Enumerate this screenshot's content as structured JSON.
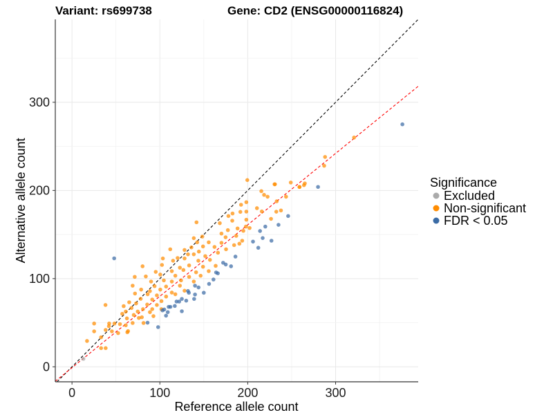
{
  "chart_data": {
    "type": "scatter",
    "title_left": "Variant: rs699738",
    "title_right": "Gene: CD2 (ENSG00000116824)",
    "xlabel": "Reference allele count",
    "ylabel": "Alternative allele count",
    "xlim": [
      -19,
      394
    ],
    "ylim": [
      -17,
      394
    ],
    "xticks": [
      0,
      100,
      200,
      300
    ],
    "yticks": [
      0,
      100,
      200,
      300
    ],
    "xtick_labels": [
      "0",
      "100",
      "200",
      "300"
    ],
    "ytick_labels": [
      "0",
      "100",
      "200",
      "300"
    ],
    "grid": true,
    "reference_lines": [
      {
        "name": "identity",
        "slope": 1,
        "intercept": 0,
        "color": "#000000",
        "style": "dashed"
      },
      {
        "name": "fit",
        "slope": 0.81,
        "intercept": -1,
        "color": "#FF0000",
        "style": "dashed"
      }
    ],
    "legend": {
      "title": "Significance",
      "placement": "right",
      "entries": [
        {
          "label": "Excluded",
          "color": "#AAAAAA"
        },
        {
          "label": "Non-significant",
          "color": "#FF8C00"
        },
        {
          "label": "FDR < 0.05",
          "color": "#3B6BA5"
        }
      ]
    },
    "series": [
      {
        "name": "Excluded",
        "color": "#AAAAAA",
        "points": [
          [
            13,
            9
          ]
        ]
      },
      {
        "name": "Non-significant",
        "color": "#FF8C00",
        "points": [
          [
            321,
            260
          ],
          [
            288,
            238
          ],
          [
            287,
            228
          ],
          [
            249,
            209
          ],
          [
            231,
            207
          ],
          [
            259,
            204
          ],
          [
            264,
            206
          ],
          [
            265,
            208
          ],
          [
            199.5,
            211.8
          ],
          [
            230.5,
            207
          ],
          [
            258.8,
            203.9
          ],
          [
            215.5,
            199.2
          ],
          [
            218.6,
            195
          ],
          [
            222.6,
            192.9
          ],
          [
            243.6,
            192.9
          ],
          [
            198.4,
            186.7
          ],
          [
            233,
            187.7
          ],
          [
            192.4,
            183.8
          ],
          [
            210.5,
            179.9
          ],
          [
            232.5,
            175.9
          ],
          [
            237.8,
            177.3
          ],
          [
            178,
            171
          ],
          [
            182.7,
            173.9
          ],
          [
            191.6,
            175.7
          ],
          [
            198.4,
            176
          ],
          [
            216,
            176.2
          ],
          [
            226.5,
            167.8
          ],
          [
            182.4,
            165.7
          ],
          [
            198.4,
            166.8
          ],
          [
            141.7,
            163.9
          ],
          [
            168.2,
            162.9
          ],
          [
            177.4,
            155
          ],
          [
            188.4,
            156.9
          ],
          [
            197.9,
            159
          ],
          [
            202.1,
            157.4
          ],
          [
            195,
            154.2
          ],
          [
            170.1,
            151.1
          ],
          [
            174.8,
            146.9
          ],
          [
            186.9,
            148.5
          ],
          [
            193.7,
            143
          ],
          [
            138.6,
            145.9
          ],
          [
            148.3,
            147.7
          ],
          [
            142.5,
            141.2
          ],
          [
            155.6,
            141.2
          ],
          [
            170.1,
            140.6
          ],
          [
            184.5,
            138
          ],
          [
            190.5,
            139.6
          ],
          [
            111.8,
            133.3
          ],
          [
            128.1,
            132.5
          ],
          [
            135.9,
            135.4
          ],
          [
            149.1,
            136.5
          ],
          [
            162.2,
            135.9
          ],
          [
            175.3,
            133.3
          ],
          [
            144.4,
            130.7
          ],
          [
            132,
            127.6
          ],
          [
            120.2,
            123.4
          ],
          [
            138.6,
            127.6
          ],
          [
            151.7,
            125.5
          ],
          [
            166.1,
            129.4
          ],
          [
            103.4,
            122.9
          ],
          [
            115,
            120.3
          ],
          [
            128.1,
            122.9
          ],
          [
            143.8,
            120.3
          ],
          [
            157,
            121.3
          ],
          [
            80.3,
            114
          ],
          [
            102.4,
            115.5
          ],
          [
            122.8,
            112.4
          ],
          [
            133.3,
            115
          ],
          [
            149.1,
            113.5
          ],
          [
            163.5,
            114.5
          ],
          [
            95.3,
            107.7
          ],
          [
            113.6,
            108.5
          ],
          [
            126.8,
            109.8
          ],
          [
            141.2,
            107.2
          ],
          [
            155.6,
            108.5
          ],
          [
            71.4,
            102
          ],
          [
            84,
            102.5
          ],
          [
            100.5,
            104.6
          ],
          [
            117.6,
            103.3
          ],
          [
            133.3,
            102
          ],
          [
            146.4,
            103.3
          ],
          [
            90,
            96.7
          ],
          [
            104.5,
            98
          ],
          [
            113.6,
            96.7
          ],
          [
            124.1,
            98
          ],
          [
            138.6,
            96.7
          ],
          [
            69,
            92
          ],
          [
            94,
            91.5
          ],
          [
            107.1,
            91
          ],
          [
            122.8,
            92
          ],
          [
            78.7,
            87.6
          ],
          [
            88.7,
            85.8
          ],
          [
            100.5,
            87.6
          ],
          [
            113.6,
            84.2
          ],
          [
            128.1,
            86.3
          ],
          [
            71.7,
            83.1
          ],
          [
            86.1,
            82.3
          ],
          [
            96.6,
            81
          ],
          [
            107.1,
            79.7
          ],
          [
            117.6,
            82.3
          ],
          [
            78.2,
            77.1
          ],
          [
            91.3,
            76.3
          ],
          [
            101.8,
            74.5
          ],
          [
            65.1,
            73.2
          ],
          [
            73,
            71.9
          ],
          [
            85.6,
            70.6
          ],
          [
            96.6,
            70.1
          ],
          [
            38.1,
            70.1
          ],
          [
            58.8,
            68.8
          ],
          [
            67.7,
            66.7
          ],
          [
            80.8,
            65.4
          ],
          [
            91.3,
            65.4
          ],
          [
            101.8,
            65.4
          ],
          [
            61.2,
            62.7
          ],
          [
            74.8,
            62.7
          ],
          [
            88.7,
            62
          ],
          [
            57.2,
            60.1
          ],
          [
            70.3,
            58.8
          ],
          [
            79.5,
            56.2
          ],
          [
            92.7,
            57.5
          ],
          [
            62.5,
            54.9
          ],
          [
            76.1,
            55.4
          ],
          [
            81.4,
            49.7
          ],
          [
            69,
            49.7
          ],
          [
            54.6,
            48.4
          ],
          [
            61.2,
            47.1
          ],
          [
            42.3,
            49.1
          ],
          [
            42,
            46
          ],
          [
            25.2,
            49.1
          ],
          [
            25.2,
            40.2
          ],
          [
            45.4,
            40.2
          ],
          [
            38.3,
            41.8
          ],
          [
            63.8,
            40.5
          ],
          [
            63,
            39.2
          ],
          [
            52.5,
            38.2
          ],
          [
            17.1,
            29.3
          ],
          [
            33.1,
            33.5
          ],
          [
            33.1,
            21.2
          ],
          [
            38.3,
            21.2
          ],
          [
            48.3,
            49.1
          ]
        ]
      },
      {
        "name": "FDR < 0.05",
        "color": "#3B6BA5",
        "points": [
          [
            48,
            123
          ],
          [
            86,
            50
          ],
          [
            98,
            45
          ],
          [
            103,
            64
          ],
          [
            105,
            65
          ],
          [
            107,
            58
          ],
          [
            109,
            62
          ],
          [
            110,
            68
          ],
          [
            112,
            68
          ],
          [
            117,
            69
          ],
          [
            119,
            74
          ],
          [
            122,
            74
          ],
          [
            125,
            77
          ],
          [
            125,
            63
          ],
          [
            130,
            75
          ],
          [
            132,
            86
          ],
          [
            133,
            84
          ],
          [
            139,
            77
          ],
          [
            140,
            82
          ],
          [
            140,
            92
          ],
          [
            144,
            90
          ],
          [
            150,
            84
          ],
          [
            156,
            94
          ],
          [
            161,
            99
          ],
          [
            164,
            107
          ],
          [
            166,
            106
          ],
          [
            172,
            118
          ],
          [
            175,
            116
          ],
          [
            181,
            114
          ],
          [
            186,
            125
          ],
          [
            206,
            142
          ],
          [
            212,
            135
          ],
          [
            214,
            154
          ],
          [
            217,
            146
          ],
          [
            220,
            159
          ],
          [
            227,
            143
          ],
          [
            235,
            161
          ],
          [
            246,
            171
          ],
          [
            280,
            204
          ],
          [
            376,
            275
          ]
        ]
      }
    ]
  }
}
